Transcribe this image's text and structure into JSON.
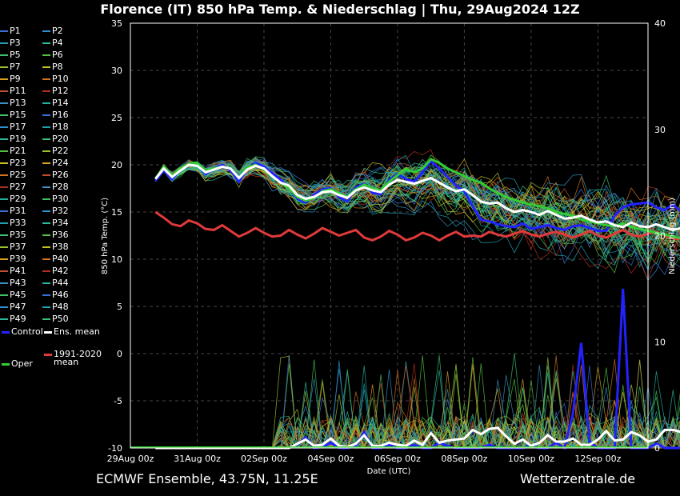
{
  "title": "Florence  (IT)  850 hPa Temp. & Niederschlag | Thu, 29Aug2024 12Z",
  "footer": {
    "left": "ECMWF Ensemble, 43.75N, 11.25E",
    "right": "Wetterzentrale.de"
  },
  "legend": {
    "members": [
      "P1",
      "P2",
      "P3",
      "P4",
      "P5",
      "P6",
      "P7",
      "P8",
      "P9",
      "P10",
      "P11",
      "P12",
      "P13",
      "P14",
      "P15",
      "P16",
      "P17",
      "P18",
      "P19",
      "P20",
      "P21",
      "P22",
      "P23",
      "P24",
      "P25",
      "P26",
      "P27",
      "P28",
      "P29",
      "P30",
      "P31",
      "P32",
      "P33",
      "P34",
      "P35",
      "P36",
      "P37",
      "P38",
      "P39",
      "P40",
      "P41",
      "P42",
      "P43",
      "P44",
      "P45",
      "P46",
      "P47",
      "P48",
      "P49",
      "P50"
    ],
    "control": "Control",
    "ens_mean": "Ens. mean",
    "oper": "Oper",
    "climate_line1": "1991-2020",
    "climate_line2": "mean"
  },
  "colors": {
    "background": "#000000",
    "control": "#2222ff",
    "ens_mean": "#ffffff",
    "oper": "#33cc33",
    "climate": "#e03a3a",
    "members": [
      "#3a6fd8",
      "#2f8fd0",
      "#20a0b0",
      "#2eb89a",
      "#3cc070",
      "#55c040",
      "#9ac030",
      "#c8c020",
      "#d8a020",
      "#d07020",
      "#c05030",
      "#b03020",
      "#3a90c0",
      "#20b0a0",
      "#40c060"
    ]
  },
  "chart_data": {
    "type": "line",
    "xlabel": "Date (UTC)",
    "ylabel": "850 hPa Temp. (°C)",
    "y2label": "Niederschlag (mm)",
    "ylim": [
      -10,
      35
    ],
    "y2lim": [
      0,
      40
    ],
    "yticks": [
      "35",
      "30",
      "25",
      "20",
      "15",
      "10",
      "5",
      "0",
      "-5",
      "-10"
    ],
    "y2ticks": [
      "40",
      "30",
      "20",
      "10",
      "0"
    ],
    "x_range_hours": [
      0,
      372
    ],
    "xticks": [
      {
        "label": "29Aug 00z",
        "hour": 0
      },
      {
        "label": "31Aug 00z",
        "hour": 48
      },
      {
        "label": "02Sep 00z",
        "hour": 96
      },
      {
        "label": "04Sep 00z",
        "hour": 144
      },
      {
        "label": "06Sep 00z",
        "hour": 192
      },
      {
        "label": "08Sep 00z",
        "hour": 240
      },
      {
        "label": "10Sep 00z",
        "hour": 288
      },
      {
        "label": "12Sep 00z",
        "hour": 336
      }
    ],
    "grid": true,
    "legend_position": "left",
    "step_hours": 6,
    "start_hour": 18,
    "series": [
      {
        "name": "Ens. mean",
        "values": [
          18.5,
          19.6,
          18.7,
          19.4,
          20.0,
          19.9,
          19.2,
          19.5,
          19.8,
          19.6,
          18.6,
          19.5,
          19.9,
          19.6,
          18.8,
          18.1,
          17.8,
          16.8,
          16.4,
          16.6,
          17.1,
          17.2,
          16.8,
          16.5,
          17.3,
          17.6,
          17.3,
          17.1,
          17.9,
          18.4,
          18.2,
          18.0,
          18.3,
          18.6,
          18.1,
          17.6,
          17.2,
          17.4,
          16.8,
          16.1,
          15.9,
          16.0,
          15.4,
          15.0,
          15.2,
          15.0,
          14.7,
          15.1,
          14.7,
          14.3,
          14.4,
          14.6,
          14.2,
          13.9,
          14.0,
          13.6,
          13.4,
          13.9,
          13.5,
          13.4,
          13.7,
          13.4,
          13.1,
          13.3,
          13.6,
          13.3,
          13.0,
          13.1
        ]
      },
      {
        "name": "Control",
        "values": [
          18.3,
          19.4,
          18.5,
          19.5,
          20.1,
          20.0,
          19.0,
          19.6,
          20.0,
          19.4,
          18.2,
          19.6,
          20.2,
          19.8,
          19.1,
          18.4,
          17.6,
          16.4,
          16.0,
          16.8,
          17.4,
          17.5,
          16.6,
          16.1,
          17.6,
          18.0,
          17.0,
          16.9,
          18.4,
          19.0,
          18.5,
          18.2,
          19.2,
          20.4,
          19.6,
          18.7,
          17.8,
          17.2,
          15.6,
          14.2,
          14.0,
          13.7,
          13.5,
          13.4,
          13.8,
          13.2,
          13.4,
          13.6,
          13.3,
          13.1,
          13.5,
          13.6,
          13.3,
          13.0,
          13.0,
          14.6,
          15.5,
          15.8,
          15.9,
          16.0,
          15.5,
          15.2,
          15.8,
          15.0,
          14.4,
          14.2,
          14.6,
          14.3
        ]
      },
      {
        "name": "Oper",
        "values": [
          18.5,
          19.8,
          18.8,
          19.6,
          20.1,
          20.2,
          19.4,
          19.6,
          19.8,
          19.6,
          18.6,
          19.7,
          20.0,
          19.5,
          18.8,
          18.1,
          17.5,
          16.6,
          16.2,
          16.5,
          17.2,
          17.4,
          17.0,
          16.6,
          17.4,
          17.9,
          17.5,
          17.3,
          18.2,
          18.9,
          19.6,
          19.2,
          19.6,
          20.6,
          20.2,
          19.6,
          19.2,
          18.8,
          18.4,
          18.1,
          17.5,
          17.0,
          16.6,
          16.3,
          16.0,
          15.8,
          15.6,
          15.4,
          15.0,
          14.8,
          14.6,
          14.2,
          14.0,
          13.8,
          13.6,
          13.5,
          13.8,
          13.4,
          13.2,
          13.0,
          12.8,
          12.6,
          12.4,
          12.2,
          12.0,
          11.8,
          11.6,
          11.4
        ]
      },
      {
        "name": "1991-2020 mean",
        "values": [
          15.0,
          14.4,
          13.7,
          13.5,
          14.1,
          13.8,
          13.2,
          13.1,
          13.6,
          13.0,
          12.4,
          12.8,
          13.3,
          12.8,
          12.4,
          12.5,
          13.1,
          12.6,
          12.2,
          12.7,
          13.3,
          12.9,
          12.5,
          12.8,
          13.1,
          12.3,
          12.0,
          12.4,
          13.0,
          12.6,
          12.0,
          12.3,
          12.8,
          12.5,
          12.0,
          12.5,
          12.9,
          12.4,
          12.5,
          12.4,
          12.9,
          12.6,
          12.4,
          12.7,
          13.0,
          12.6,
          12.4,
          12.7,
          12.9,
          12.6,
          12.3,
          12.6,
          13.0,
          12.5,
          12.3,
          12.7,
          13.1,
          12.6,
          12.4,
          12.7,
          12.9,
          12.5,
          12.2,
          12.1,
          12.2,
          11.9,
          11.9,
          11.8
        ]
      },
      {
        "name": "Ens. mean precip",
        "axis": "y2",
        "values": [
          0,
          0,
          0,
          0,
          0,
          0,
          0,
          0,
          0,
          0,
          0,
          0,
          0,
          0,
          0,
          0,
          0,
          0.4,
          0.8,
          0.2,
          0.3,
          0.9,
          0.2,
          0.1,
          0.4,
          1.2,
          0.2,
          0.2,
          0.5,
          0.3,
          0.2,
          0.7,
          0.3,
          1.4,
          0.5,
          0.7,
          0.8,
          0.9,
          1.7,
          1.3,
          1.8,
          1.9,
          1.1,
          0.4,
          0.8,
          0.2,
          0.5,
          1.2,
          0.6,
          0.6,
          0.9,
          0.3,
          0.3,
          0.8,
          1.6,
          0.7,
          0.8,
          1.5,
          1.2,
          0.6,
          0.8,
          1.7,
          1.7,
          1.5,
          0.3,
          1.2,
          1.0,
          1.0
        ]
      },
      {
        "name": "Control precip",
        "axis": "y2",
        "values": [
          0,
          0,
          0,
          0,
          0,
          0,
          0,
          0,
          0,
          0,
          0,
          0,
          0,
          0,
          0,
          0,
          0,
          0.3,
          1.0,
          0,
          0.1,
          0.5,
          0,
          0,
          0.2,
          1.5,
          0,
          0,
          0.3,
          0,
          0,
          0.3,
          0,
          0,
          0.5,
          0.2,
          0,
          0,
          0,
          0,
          0.3,
          0,
          0,
          0,
          0,
          0.2,
          0,
          0,
          0.5,
          0,
          3.2,
          9.9,
          0.6,
          0,
          0,
          0,
          15.0,
          0,
          0,
          0,
          0.4,
          0,
          0,
          0,
          0,
          0.8,
          5.0,
          0
        ]
      }
    ]
  }
}
